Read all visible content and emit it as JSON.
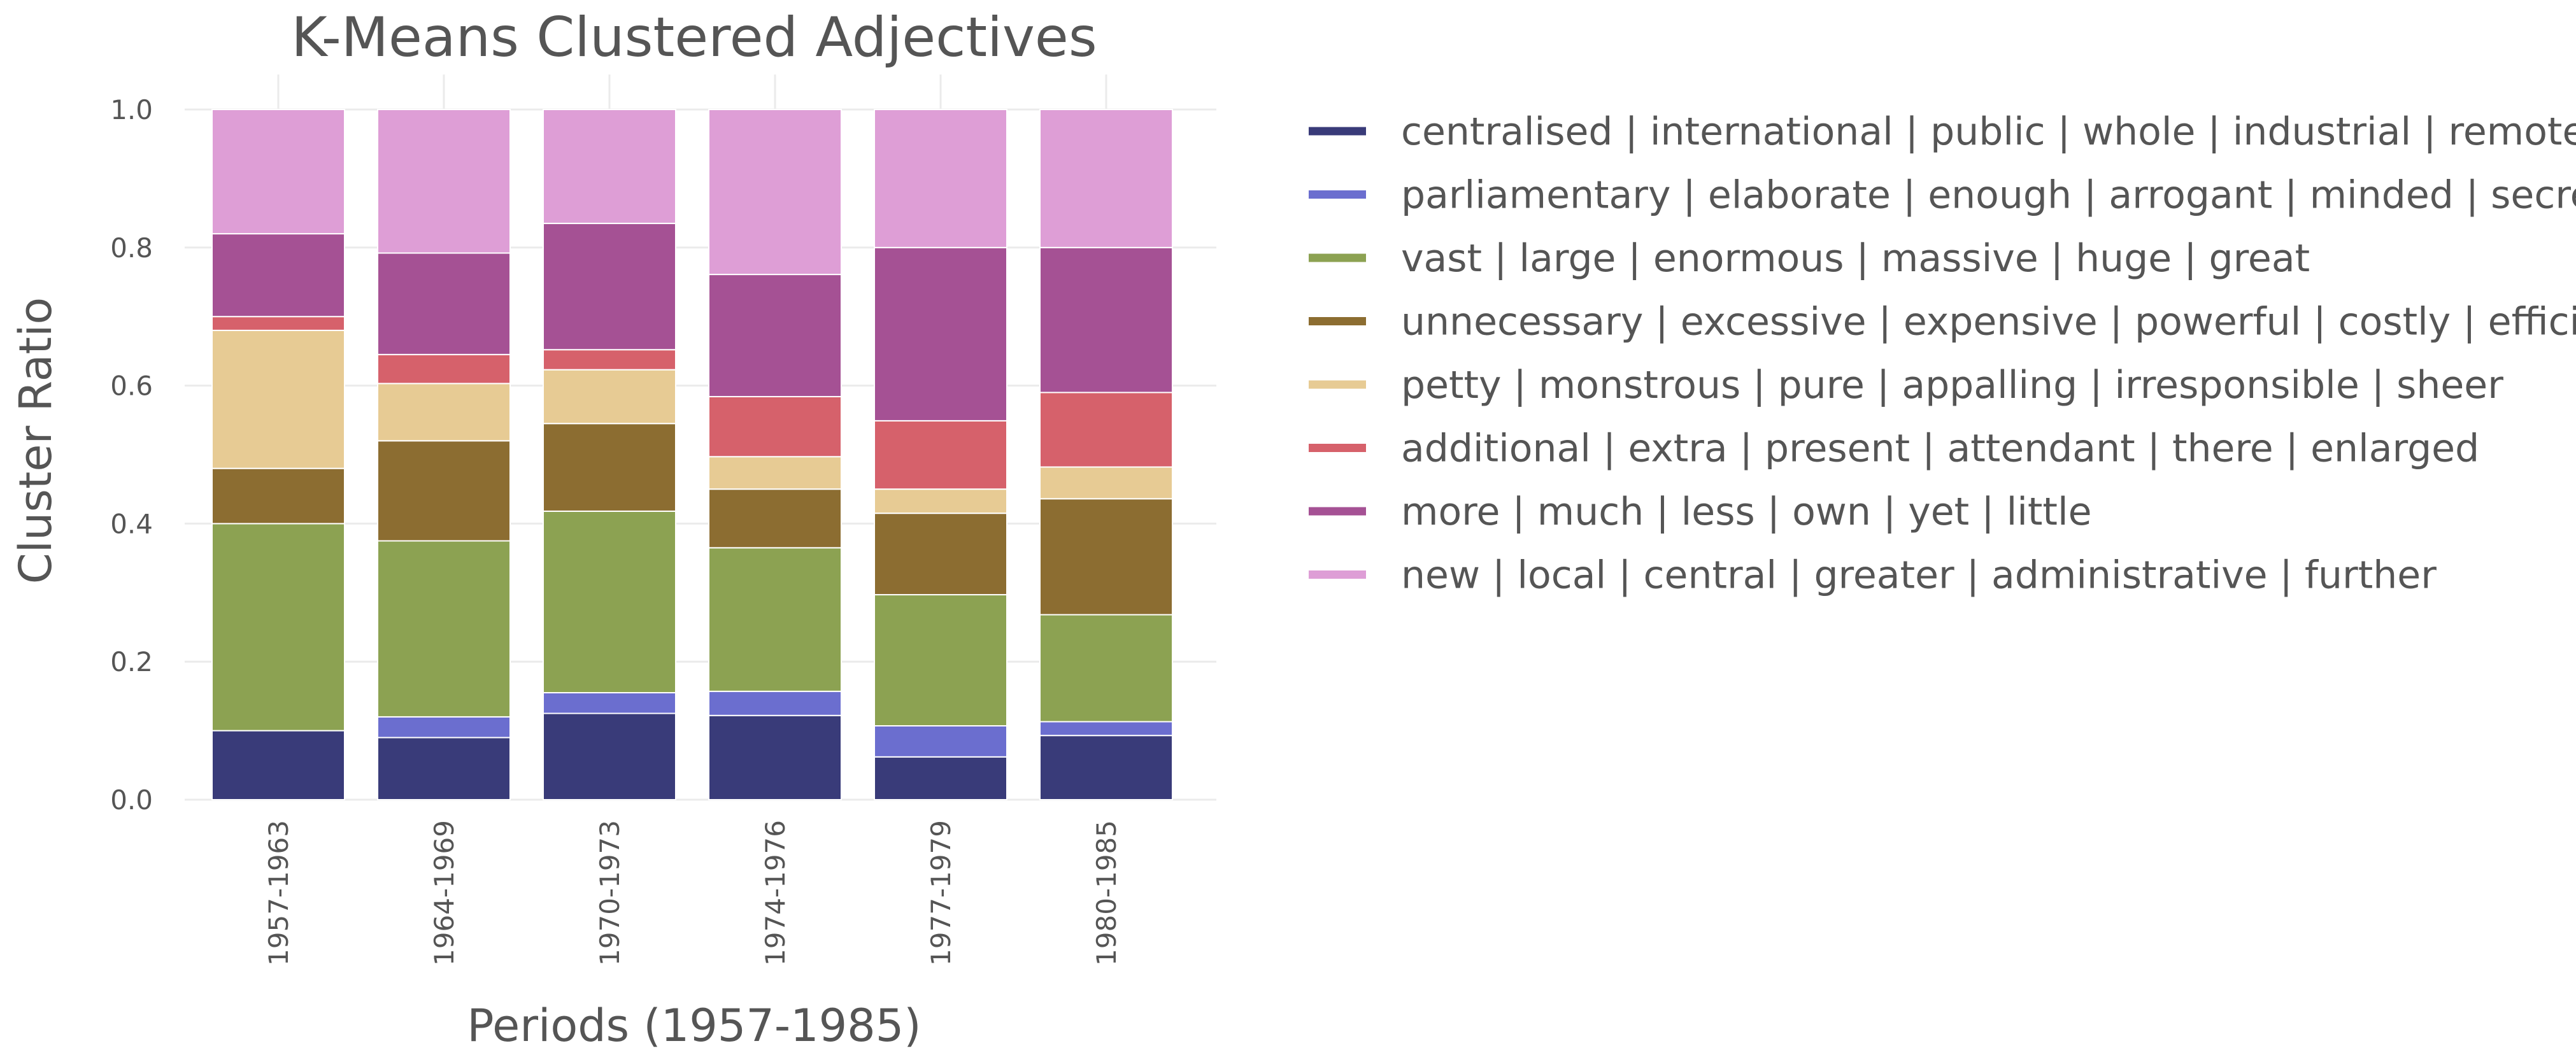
{
  "chart_data": {
    "type": "bar",
    "stacked": true,
    "title": "K-Means Clustered Adjectives",
    "xlabel": "Periods (1957-1985)",
    "ylabel": "Cluster Ratio",
    "ylim": [
      0,
      1
    ],
    "yticks": [
      "0.0",
      "0.2",
      "0.4",
      "0.6",
      "0.8",
      "1.0"
    ],
    "grid": true,
    "legend_position": "right",
    "categories": [
      "1957-1963",
      "1964-1969",
      "1970-1973",
      "1974-1976",
      "1977-1979",
      "1980-1985"
    ],
    "series": [
      {
        "name": "centralised | international | public | whole | industrial | remote",
        "color": "#393b79",
        "values": [
          0.1,
          0.09,
          0.125,
          0.122,
          0.062,
          0.093
        ]
      },
      {
        "name": "parliamentary | elaborate | enough | arrogant | minded | secret",
        "color": "#6b6ecf",
        "values": [
          0.0,
          0.03,
          0.03,
          0.035,
          0.045,
          0.02
        ]
      },
      {
        "name": "vast | large | enormous | massive | huge | great",
        "color": "#8ca252",
        "values": [
          0.3,
          0.255,
          0.263,
          0.208,
          0.19,
          0.155
        ]
      },
      {
        "name": "unnecessary | excessive | expensive | powerful | costly | efficient",
        "color": "#8c6d31",
        "values": [
          0.08,
          0.145,
          0.127,
          0.085,
          0.118,
          0.168
        ]
      },
      {
        "name": "petty | monstrous | pure | appalling | irresponsible | sheer",
        "color": "#e7cb94",
        "values": [
          0.2,
          0.083,
          0.078,
          0.047,
          0.035,
          0.046
        ]
      },
      {
        "name": "additional | extra | present | attendant | there | enlarged",
        "color": "#d6616b",
        "values": [
          0.02,
          0.042,
          0.029,
          0.087,
          0.099,
          0.108
        ]
      },
      {
        "name": "more | much | less | own | yet | little",
        "color": "#a55194",
        "values": [
          0.12,
          0.147,
          0.183,
          0.177,
          0.251,
          0.21
        ]
      },
      {
        "name": "new | local | central | greater | administrative | further",
        "color": "#de9ed6",
        "values": [
          0.18,
          0.208,
          0.165,
          0.239,
          0.2,
          0.2
        ]
      }
    ]
  }
}
